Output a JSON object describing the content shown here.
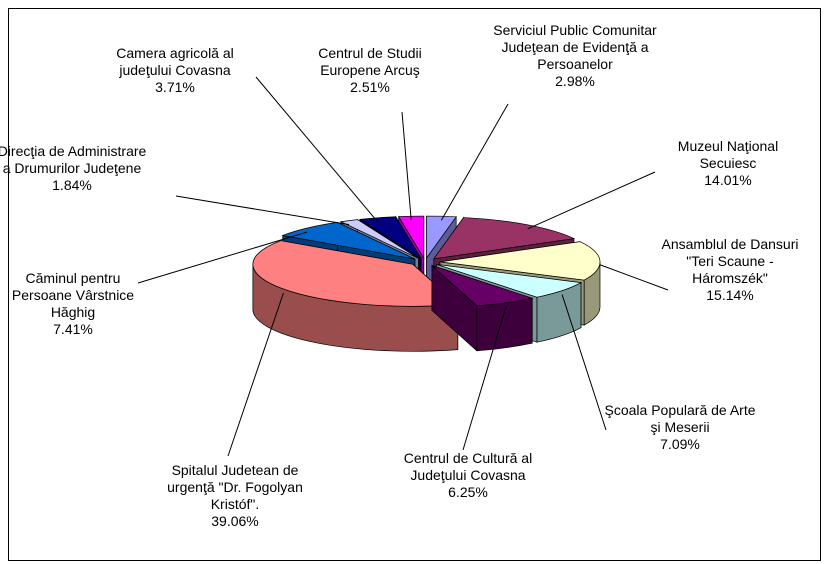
{
  "chart_data": {
    "type": "pie3d",
    "categories": [
      "Serviciul Public Comunitar Judeţean de Evidenţă a Persoanelor",
      "Muzeul Naţional Secuiesc",
      "Ansamblul de Dansuri \"Teri Scaune - Háromszék\"",
      "Şcoala Populară de Arte şi Meserii",
      "Centrul de Cultură al Judeţului Covasna",
      "Spitalul Judetean de urgenţă \"Dr. Fogolyan Kristóf\".",
      "Căminul pentru Persoane Vârstnice Hăghig",
      "Direcţia de Administrare a Drumurilor Judeţene",
      "Camera agricolă al judeţului Covasna",
      "Centrul de Studii Europene Arcuş"
    ],
    "values": [
      2.98,
      14.01,
      15.14,
      7.09,
      6.25,
      39.06,
      7.41,
      1.84,
      3.71,
      2.51
    ],
    "value_labels": [
      "2.98%",
      "14.01%",
      "15.14%",
      "7.09%",
      "6.25%",
      "39.06%",
      "7.41%",
      "1.84%",
      "3.71%",
      "2.51%"
    ],
    "colors": [
      "#9999ff",
      "#993366",
      "#ffffcc",
      "#ccffff",
      "#660066",
      "#ff8080",
      "#0066cc",
      "#ccccff",
      "#000080",
      "#ff00ff"
    ]
  }
}
